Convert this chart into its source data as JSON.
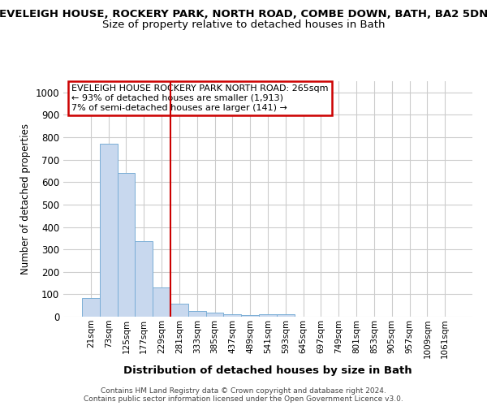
{
  "title1": "EVELEIGH HOUSE, ROCKERY PARK, NORTH ROAD, COMBE DOWN, BATH, BA2 5DN",
  "title2": "Size of property relative to detached houses in Bath",
  "xlabel": "Distribution of detached houses by size in Bath",
  "ylabel": "Number of detached properties",
  "bar_labels": [
    "21sqm",
    "73sqm",
    "125sqm",
    "177sqm",
    "229sqm",
    "281sqm",
    "333sqm",
    "385sqm",
    "437sqm",
    "489sqm",
    "541sqm",
    "593sqm",
    "645sqm",
    "697sqm",
    "749sqm",
    "801sqm",
    "853sqm",
    "905sqm",
    "957sqm",
    "1009sqm",
    "1061sqm"
  ],
  "bar_values": [
    82,
    770,
    640,
    335,
    130,
    57,
    25,
    18,
    10,
    7,
    10,
    10,
    0,
    0,
    0,
    0,
    0,
    0,
    0,
    0,
    0
  ],
  "bar_color": "#c8d8ee",
  "bar_edge_color": "#7aaed6",
  "vline_index": 4.5,
  "vline_color": "#cc0000",
  "annotation_title": "EVELEIGH HOUSE ROCKERY PARK NORTH ROAD: 265sqm",
  "annotation_line1": "← 93% of detached houses are smaller (1,913)",
  "annotation_line2": "7% of semi-detached houses are larger (141) →",
  "annotation_box_facecolor": "#ffffff",
  "annotation_box_edgecolor": "#cc0000",
  "ylim": [
    0,
    1050
  ],
  "yticks": [
    0,
    100,
    200,
    300,
    400,
    500,
    600,
    700,
    800,
    900,
    1000
  ],
  "footer1": "Contains HM Land Registry data © Crown copyright and database right 2024.",
  "footer2": "Contains public sector information licensed under the Open Government Licence v3.0.",
  "grid_color": "#cccccc",
  "fig_bg": "#ffffff",
  "axes_bg": "#ffffff",
  "title1_fontsize": 9.5,
  "title2_fontsize": 9.5
}
